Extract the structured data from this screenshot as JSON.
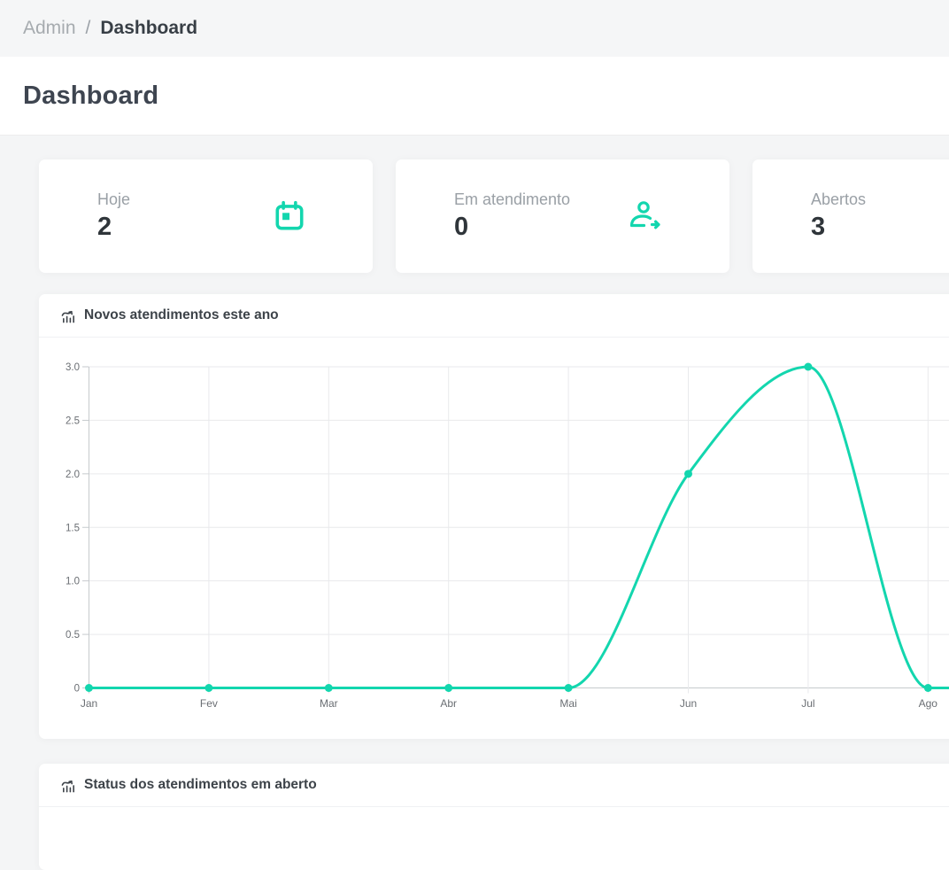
{
  "breadcrumb": {
    "root": "Admin",
    "separator": "/",
    "current": "Dashboard"
  },
  "page_title": "Dashboard",
  "stat_cards": [
    {
      "label": "Hoje",
      "value": "2",
      "icon": "calendar-icon"
    },
    {
      "label": "Em atendimento",
      "value": "0",
      "icon": "user-arrow-right-icon"
    },
    {
      "label": "Abertos",
      "value": "3",
      "icon": ""
    }
  ],
  "panels": {
    "line_chart": {
      "title": "Novos atendimentos este ano",
      "icon": "chart-stats-icon"
    },
    "status_chart": {
      "title": "Status dos atendimentos em aberto",
      "icon": "chart-stats-icon"
    }
  },
  "colors": {
    "accent": "#13d6ae",
    "axis": "#c6cacd",
    "grid": "#e9eaec",
    "tick_text": "#6a6e73"
  },
  "chart_data": {
    "type": "line",
    "title": "Novos atendimentos este ano",
    "categories": [
      "Jan",
      "Fev",
      "Mar",
      "Abr",
      "Mai",
      "Jun",
      "Jul",
      "Ago"
    ],
    "values": [
      0,
      0,
      0,
      0,
      0,
      2,
      3,
      0
    ],
    "xlabel": "",
    "ylabel": "",
    "ylim": [
      0,
      3
    ],
    "yticks": [
      0,
      0.5,
      1,
      1.5,
      2,
      2.5,
      3
    ],
    "grid": true,
    "legend": "none",
    "smooth": true,
    "line_color": "#13d6ae",
    "point_color": "#13d6ae",
    "note": "line continues flat at 0 past Ago beyond right viewport edge"
  }
}
